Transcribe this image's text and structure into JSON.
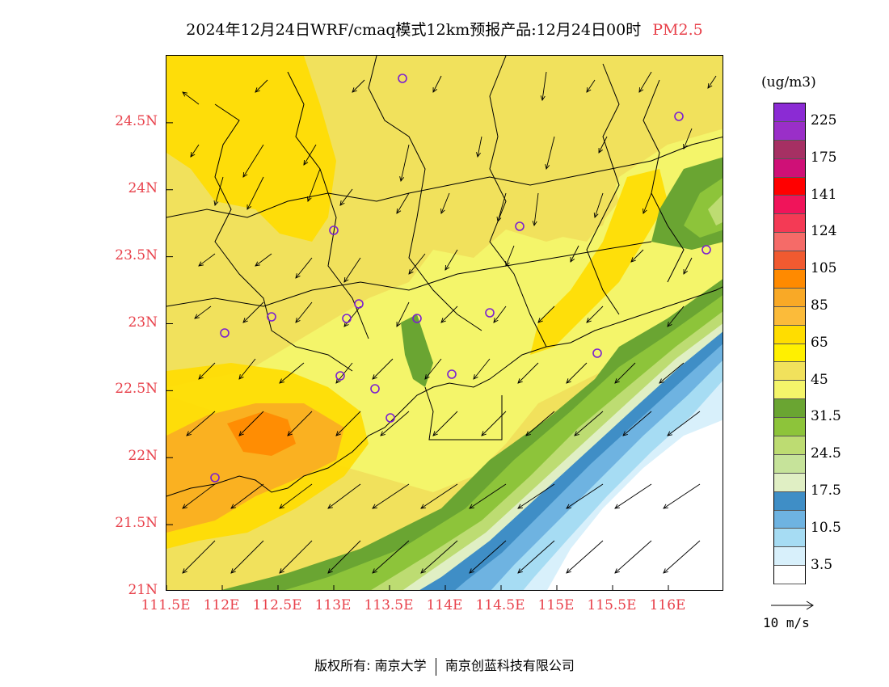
{
  "title": {
    "text": "2024年12月24日WRF/cmaq模式12km预报产品:12月24日00时",
    "pollutant": "PM2.5",
    "pollutant_color": "#e8414b"
  },
  "map": {
    "lon_range": [
      111.5,
      116.5
    ],
    "lat_range": [
      21.0,
      25.0
    ],
    "x_ticks": [
      "111.5E",
      "112E",
      "112.5E",
      "113E",
      "113.5E",
      "114E",
      "114.5E",
      "115E",
      "115.5E",
      "116E"
    ],
    "y_ticks": [
      "21N",
      "21.5N",
      "22N",
      "22.5N",
      "23N",
      "23.5N",
      "24N",
      "24.5N"
    ],
    "station_marker": "circle-marker",
    "wind_field": "wind-vector-arrows"
  },
  "colorbar": {
    "unit": "(ug/m3)",
    "labels": [
      "225",
      "175",
      "141",
      "124",
      "105",
      "85",
      "65",
      "45",
      "31.5",
      "24.5",
      "17.5",
      "10.5",
      "3.5"
    ],
    "colors": [
      "#8b2bd4",
      "#9a2fc8",
      "#a63063",
      "#cf1077",
      "#ff0000",
      "#f0145a",
      "#f43a55",
      "#f56b68",
      "#f15a30",
      "#ff8a00",
      "#f9a926",
      "#fbbb3a",
      "#ffdd00",
      "#fff000",
      "#f1e15c",
      "#f4f56a",
      "#6aa532",
      "#8dc43a",
      "#bddc72",
      "#c6e39a",
      "#e0efc4",
      "#3f8ec6",
      "#6eb3e1",
      "#a6dcf3",
      "#d8f0fb",
      "#ffffff"
    ]
  },
  "reference_vector": {
    "label": "10 m/s"
  },
  "footer": {
    "copyright_label": "版权所有:",
    "owner1": "南京大学",
    "owner2": "南京创蓝科技有限公司"
  }
}
